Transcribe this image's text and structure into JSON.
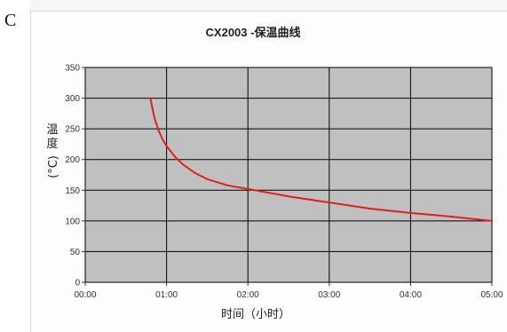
{
  "page": {
    "marker": "C"
  },
  "chart_data": {
    "type": "line",
    "title": "CX2003 -保温曲线",
    "xlabel": "时间（小时）",
    "ylabel": "温度(°C)",
    "ylabel_chars": [
      "温",
      "度",
      "(°C)"
    ],
    "x_ticks": [
      "00:00",
      "01:00",
      "02:00",
      "03:00",
      "04:00",
      "05:00"
    ],
    "x_range_hours": [
      0,
      5
    ],
    "y_ticks": [
      0,
      50,
      100,
      150,
      200,
      250,
      300,
      350
    ],
    "ylim": [
      0,
      350
    ],
    "grid": true,
    "plot_background": "#c0c0c0",
    "gridline_color": "#000000",
    "series": [
      {
        "color": "#e02020",
        "x_hours": [
          0.8,
          0.85,
          0.9,
          0.95,
          1.0,
          1.1,
          1.2,
          1.35,
          1.5,
          1.75,
          2.0,
          2.5,
          3.0,
          3.5,
          4.0,
          4.5,
          5.0
        ],
        "values": [
          300,
          268,
          248,
          233,
          222,
          205,
          192,
          178,
          168,
          158,
          152,
          140,
          130,
          120,
          113,
          107,
          100
        ]
      }
    ]
  }
}
